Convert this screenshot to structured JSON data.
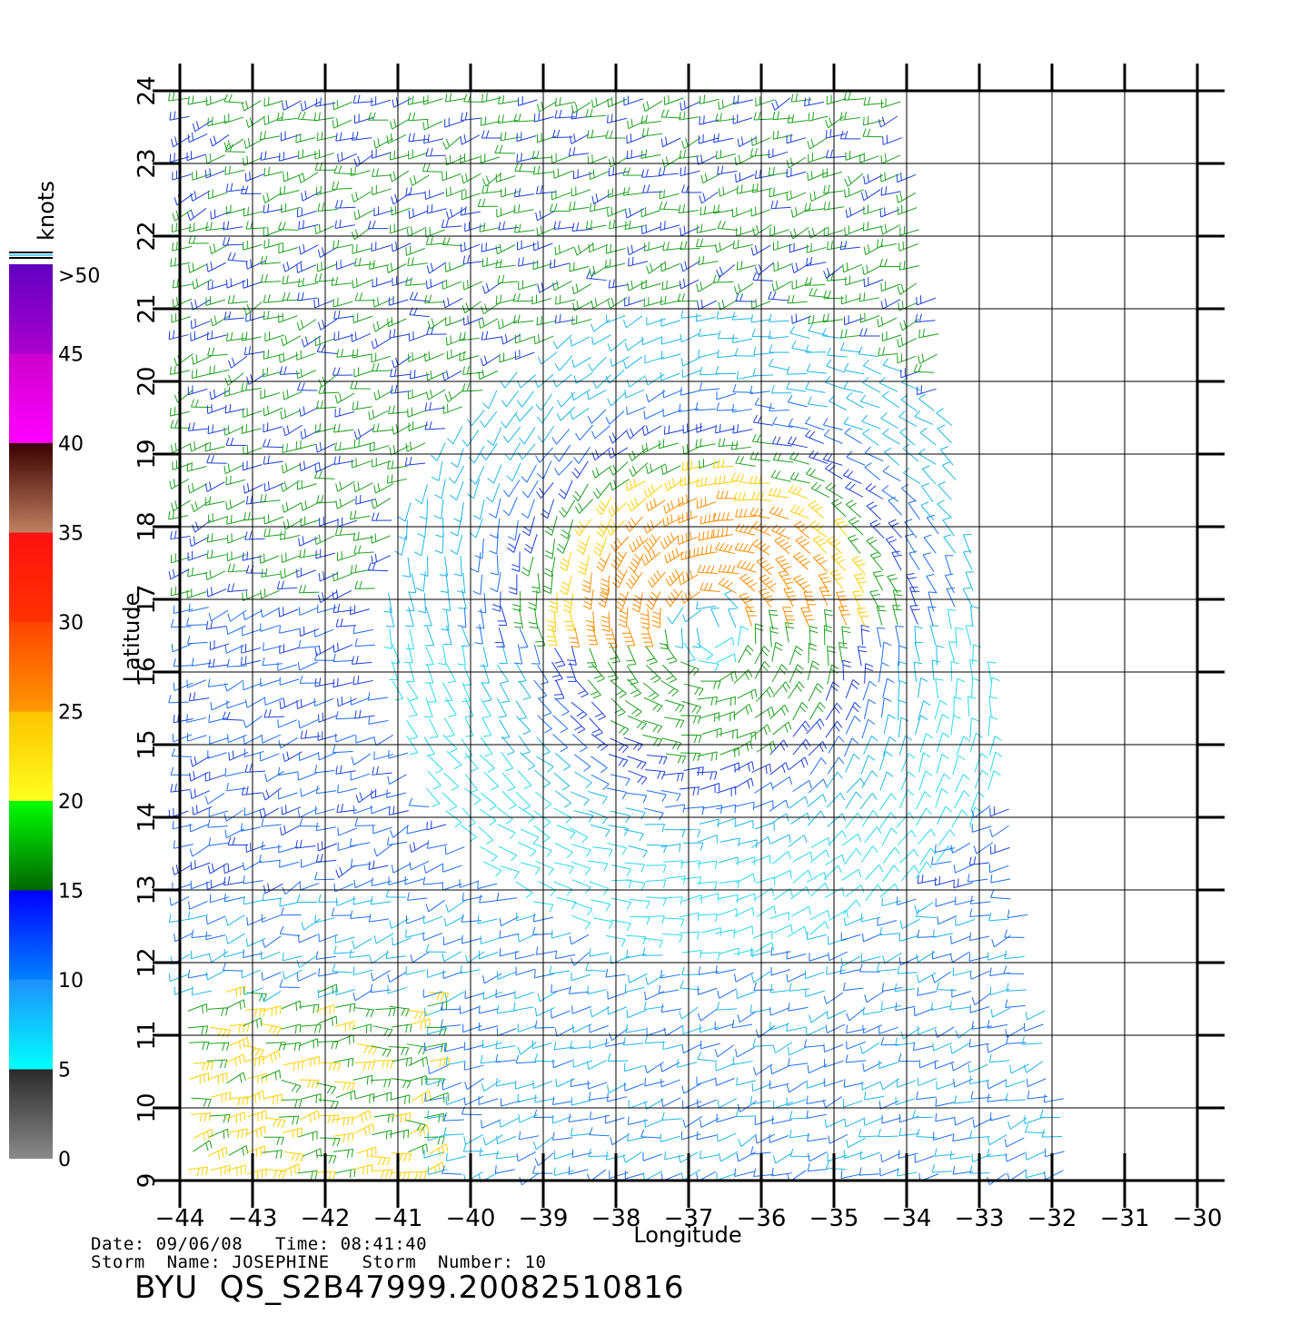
{
  "map": {
    "lon_ticks": [
      -44,
      -43,
      -42,
      -41,
      -40,
      -39,
      -38,
      -37,
      -36,
      -35,
      -34,
      -33,
      -32,
      -31,
      -30
    ],
    "lat_ticks": [
      9,
      10,
      11,
      12,
      13,
      14,
      15,
      16,
      17,
      18,
      19,
      20,
      21,
      22,
      23,
      24
    ],
    "xlabel": "Longitude",
    "ylabel": "Latitude",
    "storm_center": {
      "lon": -36.7,
      "lat": 16.6
    },
    "swath_edge_east": [
      [
        -34.0,
        24.0
      ],
      [
        -33.0,
        17.0
      ],
      [
        -32.4,
        13.0
      ],
      [
        -31.6,
        9.0
      ]
    ]
  },
  "colorbar": {
    "unit": "knots",
    "labels": [
      ">50",
      "45",
      "40",
      "35",
      "30",
      "25",
      "20",
      "15",
      "10",
      "5",
      "0"
    ],
    "bands": [
      {
        "from": 0,
        "to": 5,
        "colors": [
          "#8a8a8a",
          "#2a2a2a"
        ]
      },
      {
        "from": 5,
        "to": 10,
        "colors": [
          "#00ffff",
          "#1e90ff"
        ]
      },
      {
        "from": 10,
        "to": 15,
        "colors": [
          "#0080ff",
          "#0000ff"
        ]
      },
      {
        "from": 15,
        "to": 20,
        "colors": [
          "#006600",
          "#00ff00"
        ]
      },
      {
        "from": 20,
        "to": 25,
        "colors": [
          "#ffff20",
          "#ffc400"
        ]
      },
      {
        "from": 25,
        "to": 30,
        "colors": [
          "#ff9900",
          "#ff4400"
        ]
      },
      {
        "from": 30,
        "to": 35,
        "colors": [
          "#ff3300",
          "#ff1010"
        ]
      },
      {
        "from": 35,
        "to": 40,
        "colors": [
          "#c08060",
          "#3a0000"
        ]
      },
      {
        "from": 40,
        "to": 45,
        "colors": [
          "#ff00ff",
          "#cc00cc"
        ]
      },
      {
        "from": 45,
        "to": 50,
        "colors": [
          "#aa00cc",
          "#6000c0"
        ]
      }
    ]
  },
  "info": {
    "date_line": "Date: 09/06/08   Time: 08:41:40",
    "storm_line": "Storm  Name: JOSEPHINE   Storm  Number: 10",
    "file_id": "BYU  QS_S2B47999.20082510816"
  }
}
